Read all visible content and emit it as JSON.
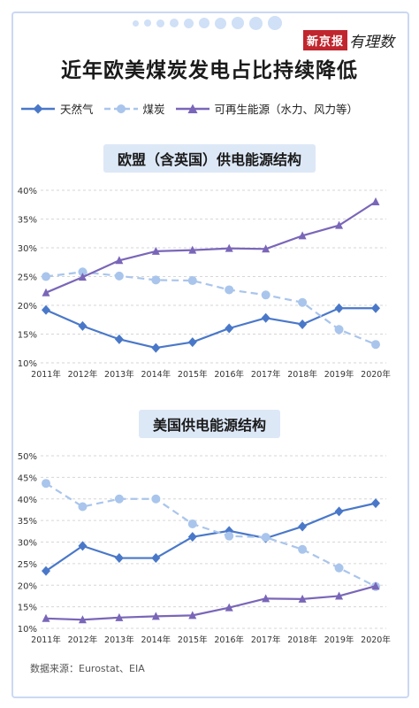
{
  "header": {
    "brand_box": "新京报",
    "brand_script": "有理数",
    "title": "近年欧美煤炭发电占比持续降低"
  },
  "legend": [
    {
      "label": "天然气",
      "color": "#4a78c9",
      "marker": "diamond",
      "dash": false
    },
    {
      "label": "煤炭",
      "color": "#a9c5ec",
      "marker": "circle",
      "dash": true
    },
    {
      "label": "可再生能源（水力、风力等）",
      "color": "#7a66b8",
      "marker": "triangle",
      "dash": false
    }
  ],
  "chart_data": [
    {
      "type": "line",
      "title": "欧盟（含英国）供电能源结构",
      "x": [
        "2011年",
        "2012年",
        "2013年",
        "2014年",
        "2015年",
        "2016年",
        "2017年",
        "2018年",
        "2019年",
        "2020年"
      ],
      "yticks": [
        "40%",
        "35%",
        "30%",
        "25%",
        "20%",
        "15%",
        "10%"
      ],
      "ylim": [
        10,
        40
      ],
      "grid": true,
      "series": [
        {
          "name": "天然气",
          "values": [
            19.2,
            16.4,
            14.1,
            12.6,
            13.6,
            16.0,
            17.8,
            16.7,
            19.5,
            19.5
          ]
        },
        {
          "name": "煤炭",
          "values": [
            25.0,
            25.8,
            25.1,
            24.4,
            24.3,
            22.7,
            21.8,
            20.5,
            15.8,
            13.2
          ]
        },
        {
          "name": "可再生能源（水力、风力等）",
          "values": [
            22.2,
            24.9,
            27.8,
            29.4,
            29.6,
            29.9,
            29.8,
            32.1,
            33.9,
            38.0
          ]
        }
      ]
    },
    {
      "type": "line",
      "title": "美国供电能源结构",
      "x": [
        "2011年",
        "2012年",
        "2013年",
        "2014年",
        "2015年",
        "2016年",
        "2017年",
        "2018年",
        "2019年",
        "2020年"
      ],
      "yticks": [
        "50%",
        "45%",
        "40%",
        "35%",
        "30%",
        "25%",
        "20%",
        "15%",
        "10%"
      ],
      "ylim": [
        10,
        50
      ],
      "grid": true,
      "series": [
        {
          "name": "天然气",
          "values": [
            23.3,
            29.1,
            26.3,
            26.3,
            31.2,
            32.6,
            30.9,
            33.6,
            37.1,
            39.0
          ]
        },
        {
          "name": "煤炭",
          "values": [
            43.6,
            38.2,
            40.0,
            40.0,
            34.2,
            31.4,
            31.1,
            28.3,
            24.0,
            19.7
          ]
        },
        {
          "name": "可再生能源（水力、风力等）",
          "values": [
            12.3,
            12.0,
            12.5,
            12.8,
            13.0,
            14.8,
            16.9,
            16.8,
            17.5,
            19.8
          ]
        }
      ]
    }
  ],
  "source": "数据来源：Eurostat、EIA"
}
